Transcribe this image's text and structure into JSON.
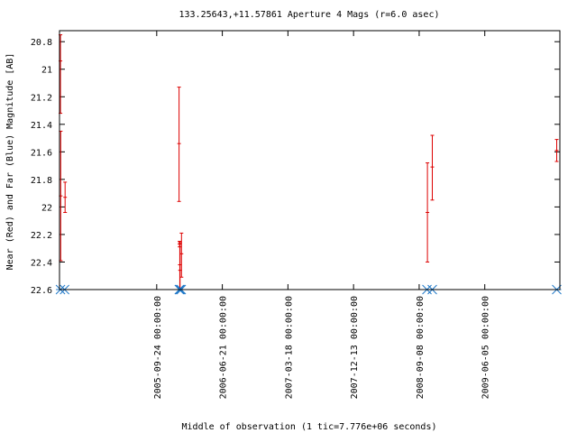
{
  "chart_data": {
    "type": "scatter",
    "title": "133.25643,+11.57861   Aperture 4 Mags (r=6.0 asec)",
    "xlabel": "Middle of observation (1 tic=7.776e+06 seconds)",
    "ylabel": "Near (Red) and Far (Blue) Magnitude [AB]",
    "y_inverted": true,
    "ylim": [
      22.6,
      20.72
    ],
    "xlim": [
      "2004-08-20 00:00:00",
      "2010-04-10 00:00:00"
    ],
    "y_ticks": [
      "20.8",
      "21",
      "21.2",
      "21.4",
      "21.6",
      "21.8",
      "22",
      "22.2",
      "22.4",
      "22.6"
    ],
    "x_ticks": [
      "2005-09-24 00:00:00",
      "2006-06-21 00:00:00",
      "2007-03-18 00:00:00",
      "2007-12-13 00:00:00",
      "2008-09-08 00:00:00",
      "2009-06-05 00:00:00"
    ],
    "grid": false,
    "colors": {
      "near": "#dd0000",
      "far": "#1f78c8",
      "axes": "#000000"
    },
    "series": [
      {
        "kind": "near",
        "points": [
          {
            "x": "2004-08-24 00:00:00",
            "y": 20.94,
            "lo": 20.75,
            "hi": 21.32
          },
          {
            "x": "2004-08-25 00:00:00",
            "y": 21.92,
            "lo": 21.45,
            "hi": 22.39
          },
          {
            "x": "2004-09-12 00:00:00",
            "y": 21.93,
            "lo": 21.82,
            "hi": 22.04
          },
          {
            "x": "2005-12-25 00:00:00",
            "y": 21.54,
            "lo": 21.13,
            "hi": 21.96
          },
          {
            "x": "2005-12-27 00:00:00",
            "y": 22.27,
            "lo": 22.25,
            "hi": 22.29
          },
          {
            "x": "2005-12-28 00:00:00",
            "y": 22.42,
            "lo": 22.25,
            "hi": 22.59
          },
          {
            "x": "2005-12-29 00:00:00",
            "y": 22.46,
            "lo": 22.26,
            "hi": 22.6
          },
          {
            "x": "2006-01-04 00:00:00",
            "y": 22.34,
            "lo": 22.19,
            "hi": 22.51
          },
          {
            "x": "2008-10-12 00:00:00",
            "y": 22.04,
            "lo": 21.68,
            "hi": 22.4
          },
          {
            "x": "2008-11-01 00:00:00",
            "y": 21.71,
            "lo": 21.48,
            "hi": 21.95
          },
          {
            "x": "2010-03-28 00:00:00",
            "y": 21.59,
            "lo": 21.51,
            "hi": 21.67
          }
        ]
      },
      {
        "kind": "far",
        "points": [
          {
            "x": "2004-08-24 00:00:00"
          },
          {
            "x": "2004-09-10 00:00:00"
          },
          {
            "x": "2005-12-26 00:00:00"
          },
          {
            "x": "2005-12-29 00:00:00"
          },
          {
            "x": "2006-01-03 00:00:00"
          },
          {
            "x": "2008-10-10 00:00:00"
          },
          {
            "x": "2008-11-01 00:00:00"
          },
          {
            "x": "2010-03-28 00:00:00"
          }
        ]
      }
    ]
  }
}
